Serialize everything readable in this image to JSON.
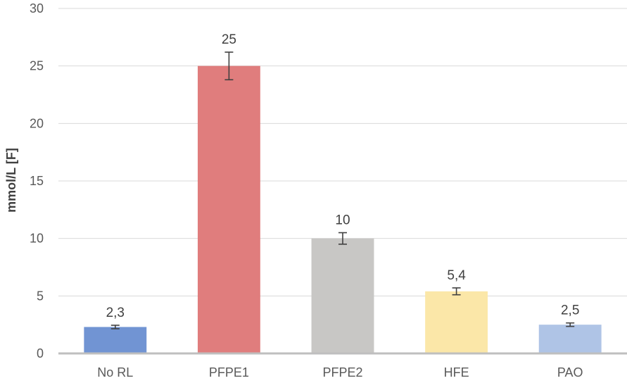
{
  "chart_data": {
    "type": "bar",
    "title": "",
    "xlabel": "",
    "ylabel": "mmol/L [F]",
    "ylim": [
      0,
      30
    ],
    "yticks": [
      0,
      5,
      10,
      15,
      20,
      25,
      30
    ],
    "grid": true,
    "categories": [
      "No RL",
      "PFPE1",
      "PFPE2",
      "HFE",
      "PAO"
    ],
    "values": [
      2.3,
      25,
      10,
      5.4,
      2.5
    ],
    "value_labels": [
      "2,3",
      "25",
      "10",
      "5,4",
      "2,5"
    ],
    "errors": [
      0.15,
      1.2,
      0.5,
      0.3,
      0.15
    ],
    "colors": [
      "#7194d3",
      "#e07d7d",
      "#c8c7c5",
      "#fbe7a8",
      "#afc4e6"
    ]
  }
}
